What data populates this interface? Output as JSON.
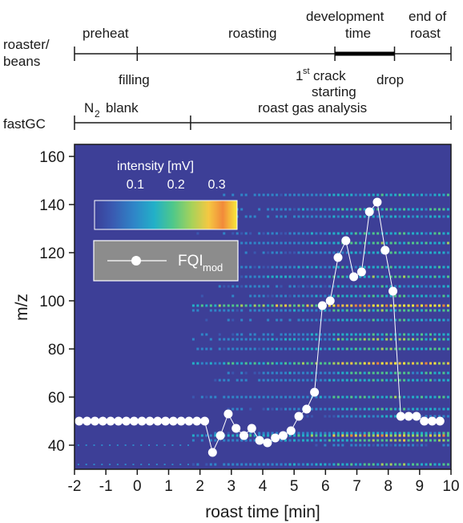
{
  "timeline": {
    "row1_label": [
      "roaster/",
      "beans"
    ],
    "row2_label": "fastGC",
    "phases": [
      "preheat",
      "roasting",
      "development",
      "time",
      "end of",
      "roast"
    ],
    "events": {
      "filling": "filling",
      "crack_sup": "st",
      "crack_word": "crack",
      "crack_num": "1",
      "starting": "starting",
      "drop": "drop"
    },
    "gc_phases": {
      "blank_sym": "N",
      "blank_sub": "2",
      "blank_word": "blank",
      "analysis": "roast gas analysis"
    },
    "row1_ticks_min": [
      -2,
      0,
      6.3,
      8.2,
      10
    ],
    "development_span_min": [
      6.3,
      8.2
    ],
    "row2_ticks_min": [
      -2,
      1.7,
      10
    ]
  },
  "colorbar": {
    "title": "intensity [mV]",
    "ticks": [
      {
        "label": "0.1",
        "value": 0.1
      },
      {
        "label": "0.2",
        "value": 0.2
      },
      {
        "label": "0.3",
        "value": 0.3
      }
    ],
    "range": [
      0,
      0.35
    ],
    "colors": [
      "#3b3f99",
      "#3a58b0",
      "#2f86c8",
      "#22b0c8",
      "#4fc88a",
      "#a6d25a",
      "#f5c842",
      "#f28a3a",
      "#f9ea3a"
    ]
  },
  "legend": {
    "label": "FQI",
    "subscript": "mod"
  },
  "chart_data": {
    "type": "heatmap",
    "xlabel": "roast time [min]",
    "ylabel": "m/z",
    "xlim": [
      -2,
      10
    ],
    "ylim": [
      30,
      165
    ],
    "xticks": [
      -2,
      -1,
      0,
      1,
      2,
      3,
      4,
      5,
      6,
      7,
      8,
      9,
      10
    ],
    "yticks": [
      40,
      60,
      80,
      100,
      120,
      140,
      160
    ],
    "background_color": "#3d3f97",
    "series": [
      {
        "name": "FQI_mod",
        "x": [
          -1.85,
          -1.6,
          -1.35,
          -1.1,
          -0.85,
          -0.6,
          -0.35,
          -0.1,
          0.15,
          0.4,
          0.65,
          0.9,
          1.15,
          1.4,
          1.65,
          1.9,
          2.15,
          2.4,
          2.65,
          2.9,
          3.15,
          3.4,
          3.65,
          3.9,
          4.15,
          4.4,
          4.65,
          4.9,
          5.15,
          5.4,
          5.65,
          5.9,
          6.15,
          6.4,
          6.65,
          6.9,
          7.15,
          7.4,
          7.65,
          7.9,
          8.15,
          8.4,
          8.65,
          8.9,
          9.15,
          9.4,
          9.65
        ],
        "y": [
          50,
          50,
          50,
          50,
          50,
          50,
          50,
          50,
          50,
          50,
          50,
          50,
          50,
          50,
          50,
          50,
          50,
          37,
          44,
          53,
          47,
          44,
          47,
          42,
          41,
          43,
          44,
          46,
          52,
          55,
          62,
          98,
          100,
          118,
          125,
          110,
          112,
          137,
          141,
          121,
          104,
          52,
          52,
          52,
          50,
          50,
          50
        ]
      }
    ],
    "heatmap_mz_bands": [
      {
        "mz": 32,
        "intensity": 0.15
      },
      {
        "mz": 40,
        "intensity": 0.07
      },
      {
        "mz": 42,
        "intensity": 0.16
      },
      {
        "mz": 44,
        "intensity": 0.22
      },
      {
        "mz": 45,
        "intensity": 0.12
      },
      {
        "mz": 52,
        "intensity": 0.08
      },
      {
        "mz": 55,
        "intensity": 0.12
      },
      {
        "mz": 60,
        "intensity": 0.14
      },
      {
        "mz": 67,
        "intensity": 0.12
      },
      {
        "mz": 70,
        "intensity": 0.13
      },
      {
        "mz": 74,
        "intensity": 0.25
      },
      {
        "mz": 80,
        "intensity": 0.14
      },
      {
        "mz": 84,
        "intensity": 0.16
      },
      {
        "mz": 86,
        "intensity": 0.12
      },
      {
        "mz": 92,
        "intensity": 0.11
      },
      {
        "mz": 96,
        "intensity": 0.14
      },
      {
        "mz": 98,
        "intensity": 0.32
      },
      {
        "mz": 102,
        "intensity": 0.12
      },
      {
        "mz": 106,
        "intensity": 0.11
      },
      {
        "mz": 110,
        "intensity": 0.15
      },
      {
        "mz": 114,
        "intensity": 0.13
      },
      {
        "mz": 120,
        "intensity": 0.11
      },
      {
        "mz": 124,
        "intensity": 0.14
      },
      {
        "mz": 128,
        "intensity": 0.12
      },
      {
        "mz": 135,
        "intensity": 0.11
      },
      {
        "mz": 138,
        "intensity": 0.12
      },
      {
        "mz": 144,
        "intensity": 0.12
      }
    ]
  }
}
